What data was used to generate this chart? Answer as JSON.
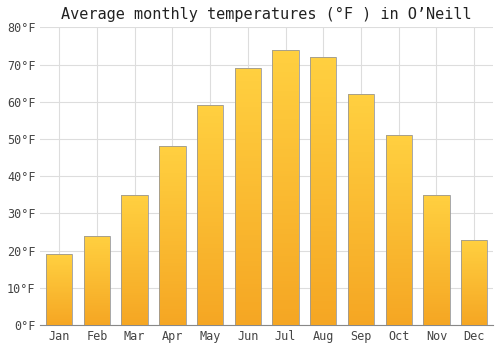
{
  "title": "Average monthly temperatures (°F ) in O’Neill",
  "months": [
    "Jan",
    "Feb",
    "Mar",
    "Apr",
    "May",
    "Jun",
    "Jul",
    "Aug",
    "Sep",
    "Oct",
    "Nov",
    "Dec"
  ],
  "values": [
    19,
    24,
    35,
    48,
    59,
    69,
    74,
    72,
    62,
    51,
    35,
    23
  ],
  "bar_color_bottom": "#F5A623",
  "bar_color_top": "#FFD040",
  "bar_edge_color": "#999999",
  "background_color": "#FFFFFF",
  "plot_bg_color": "#FFFFFF",
  "grid_color": "#DDDDDD",
  "ylim": [
    0,
    80
  ],
  "yticks": [
    0,
    10,
    20,
    30,
    40,
    50,
    60,
    70,
    80
  ],
  "ytick_labels": [
    "0°F",
    "10°F",
    "20°F",
    "30°F",
    "40°F",
    "50°F",
    "60°F",
    "70°F",
    "80°F"
  ],
  "title_fontsize": 11,
  "tick_fontsize": 8.5,
  "font_family": "monospace"
}
